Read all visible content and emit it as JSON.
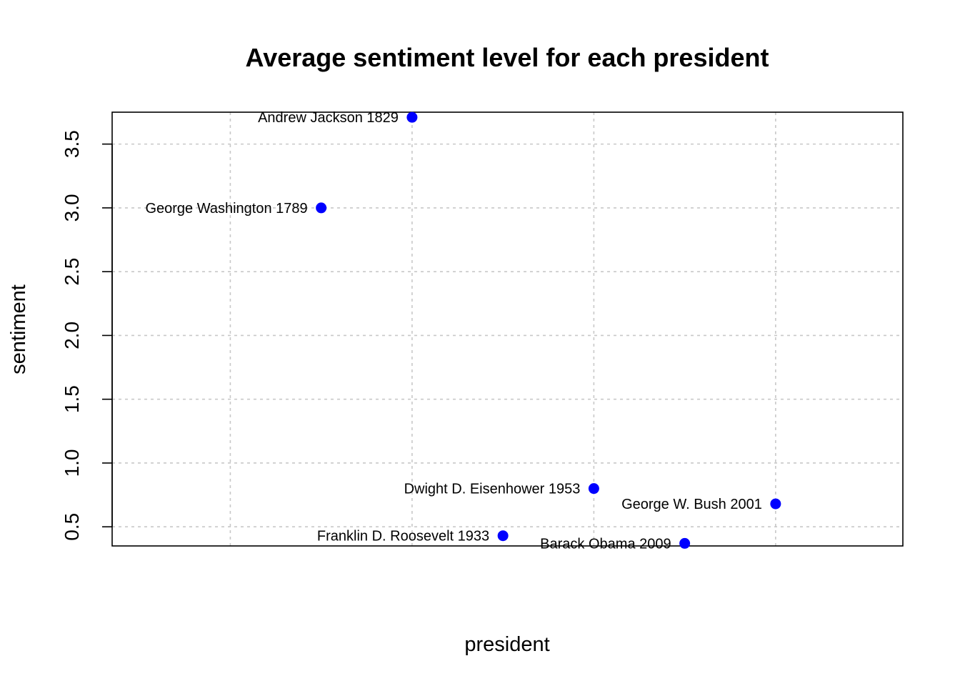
{
  "chart_data": {
    "type": "scatter",
    "title": "Average sentiment level for each president",
    "xlabel": "president",
    "ylabel": "sentiment",
    "xlim": [
      0.35,
      4.7
    ],
    "ylim": [
      0.35,
      3.75
    ],
    "y_ticks": [
      0.5,
      1.0,
      1.5,
      2.0,
      2.5,
      3.0,
      3.5
    ],
    "y_tick_labels": [
      "0.5",
      "1.0",
      "1.5",
      "2.0",
      "2.5",
      "3.0",
      "3.5"
    ],
    "x_grid": [
      1,
      2,
      3,
      4
    ],
    "grid": true,
    "point_color": "#0000ff",
    "points": [
      {
        "label": "George Washington 1789",
        "x": 1.5,
        "y": 3.0
      },
      {
        "label": "Andrew Jackson 1829",
        "x": 2.0,
        "y": 3.71
      },
      {
        "label": "Franklin D. Roosevelt 1933",
        "x": 2.5,
        "y": 0.43
      },
      {
        "label": "Dwight D. Eisenhower 1953",
        "x": 3.0,
        "y": 0.8
      },
      {
        "label": "Barack Obama 2009",
        "x": 3.5,
        "y": 0.37
      },
      {
        "label": "George W. Bush 2001",
        "x": 4.0,
        "y": 0.68
      }
    ]
  }
}
